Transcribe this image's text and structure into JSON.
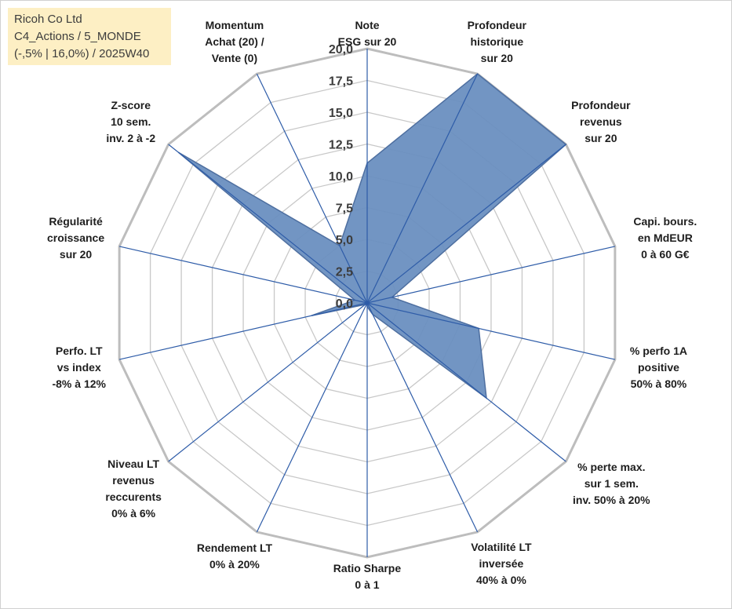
{
  "title_box": {
    "line1": "Ricoh Co Ltd",
    "line2": "C4_Actions / 5_MONDE",
    "line3": "(-,5% | 16,0%) / 2025W40"
  },
  "chart_data": {
    "type": "radar",
    "title": "Ricoh Co Ltd",
    "rmin": 0,
    "rmax": 20,
    "tick_step": 2.5,
    "tick_labels": [
      "0,0",
      "2,5",
      "5,0",
      "7,5",
      "10,0",
      "12,5",
      "15,0",
      "17,5",
      "20,0"
    ],
    "axes": [
      {
        "lines": [
          "Note",
          "ESG sur 20"
        ]
      },
      {
        "lines": [
          "Profondeur",
          "historique",
          "sur 20"
        ]
      },
      {
        "lines": [
          "Profondeur",
          "revenus",
          "sur 20"
        ]
      },
      {
        "lines": [
          "Capi. bours.",
          "en MdEUR",
          "0 à 60 G€"
        ]
      },
      {
        "lines": [
          "% perfo 1A",
          "positive",
          "50% à 80%"
        ]
      },
      {
        "lines": [
          "% perte max.",
          "sur 1 sem.",
          "inv. 50% à 20%"
        ]
      },
      {
        "lines": [
          "Volatilité LT",
          "inversée",
          "40% à 0%"
        ]
      },
      {
        "lines": [
          "Ratio Sharpe",
          "0 à 1"
        ]
      },
      {
        "lines": [
          "Rendement LT",
          "0% à 20%"
        ]
      },
      {
        "lines": [
          "Niveau LT",
          "revenus",
          "reccurents",
          "0% à 6%"
        ]
      },
      {
        "lines": [
          "Perfo. LT",
          "vs index",
          "-8% à 12%"
        ]
      },
      {
        "lines": [
          "Régularité",
          "croissance",
          "sur 20"
        ]
      },
      {
        "lines": [
          "Z-score",
          "10 sem.",
          "inv. 2 à -2"
        ]
      },
      {
        "lines": [
          "Momentum",
          "Achat (20) /",
          "Vente (0)"
        ]
      }
    ],
    "series": [
      {
        "name": "Ricoh Co Ltd",
        "values": [
          11,
          20,
          20,
          2,
          9,
          12,
          1,
          0.3,
          0,
          0.2,
          4.5,
          1,
          19,
          5
        ]
      }
    ],
    "colors": {
      "fill": "#6a8fc0",
      "edge": "#4e6fa0",
      "spoke": "#2e5ca8",
      "grid": "#c8c8c8",
      "ring_outer": "#bdbdbd"
    }
  }
}
